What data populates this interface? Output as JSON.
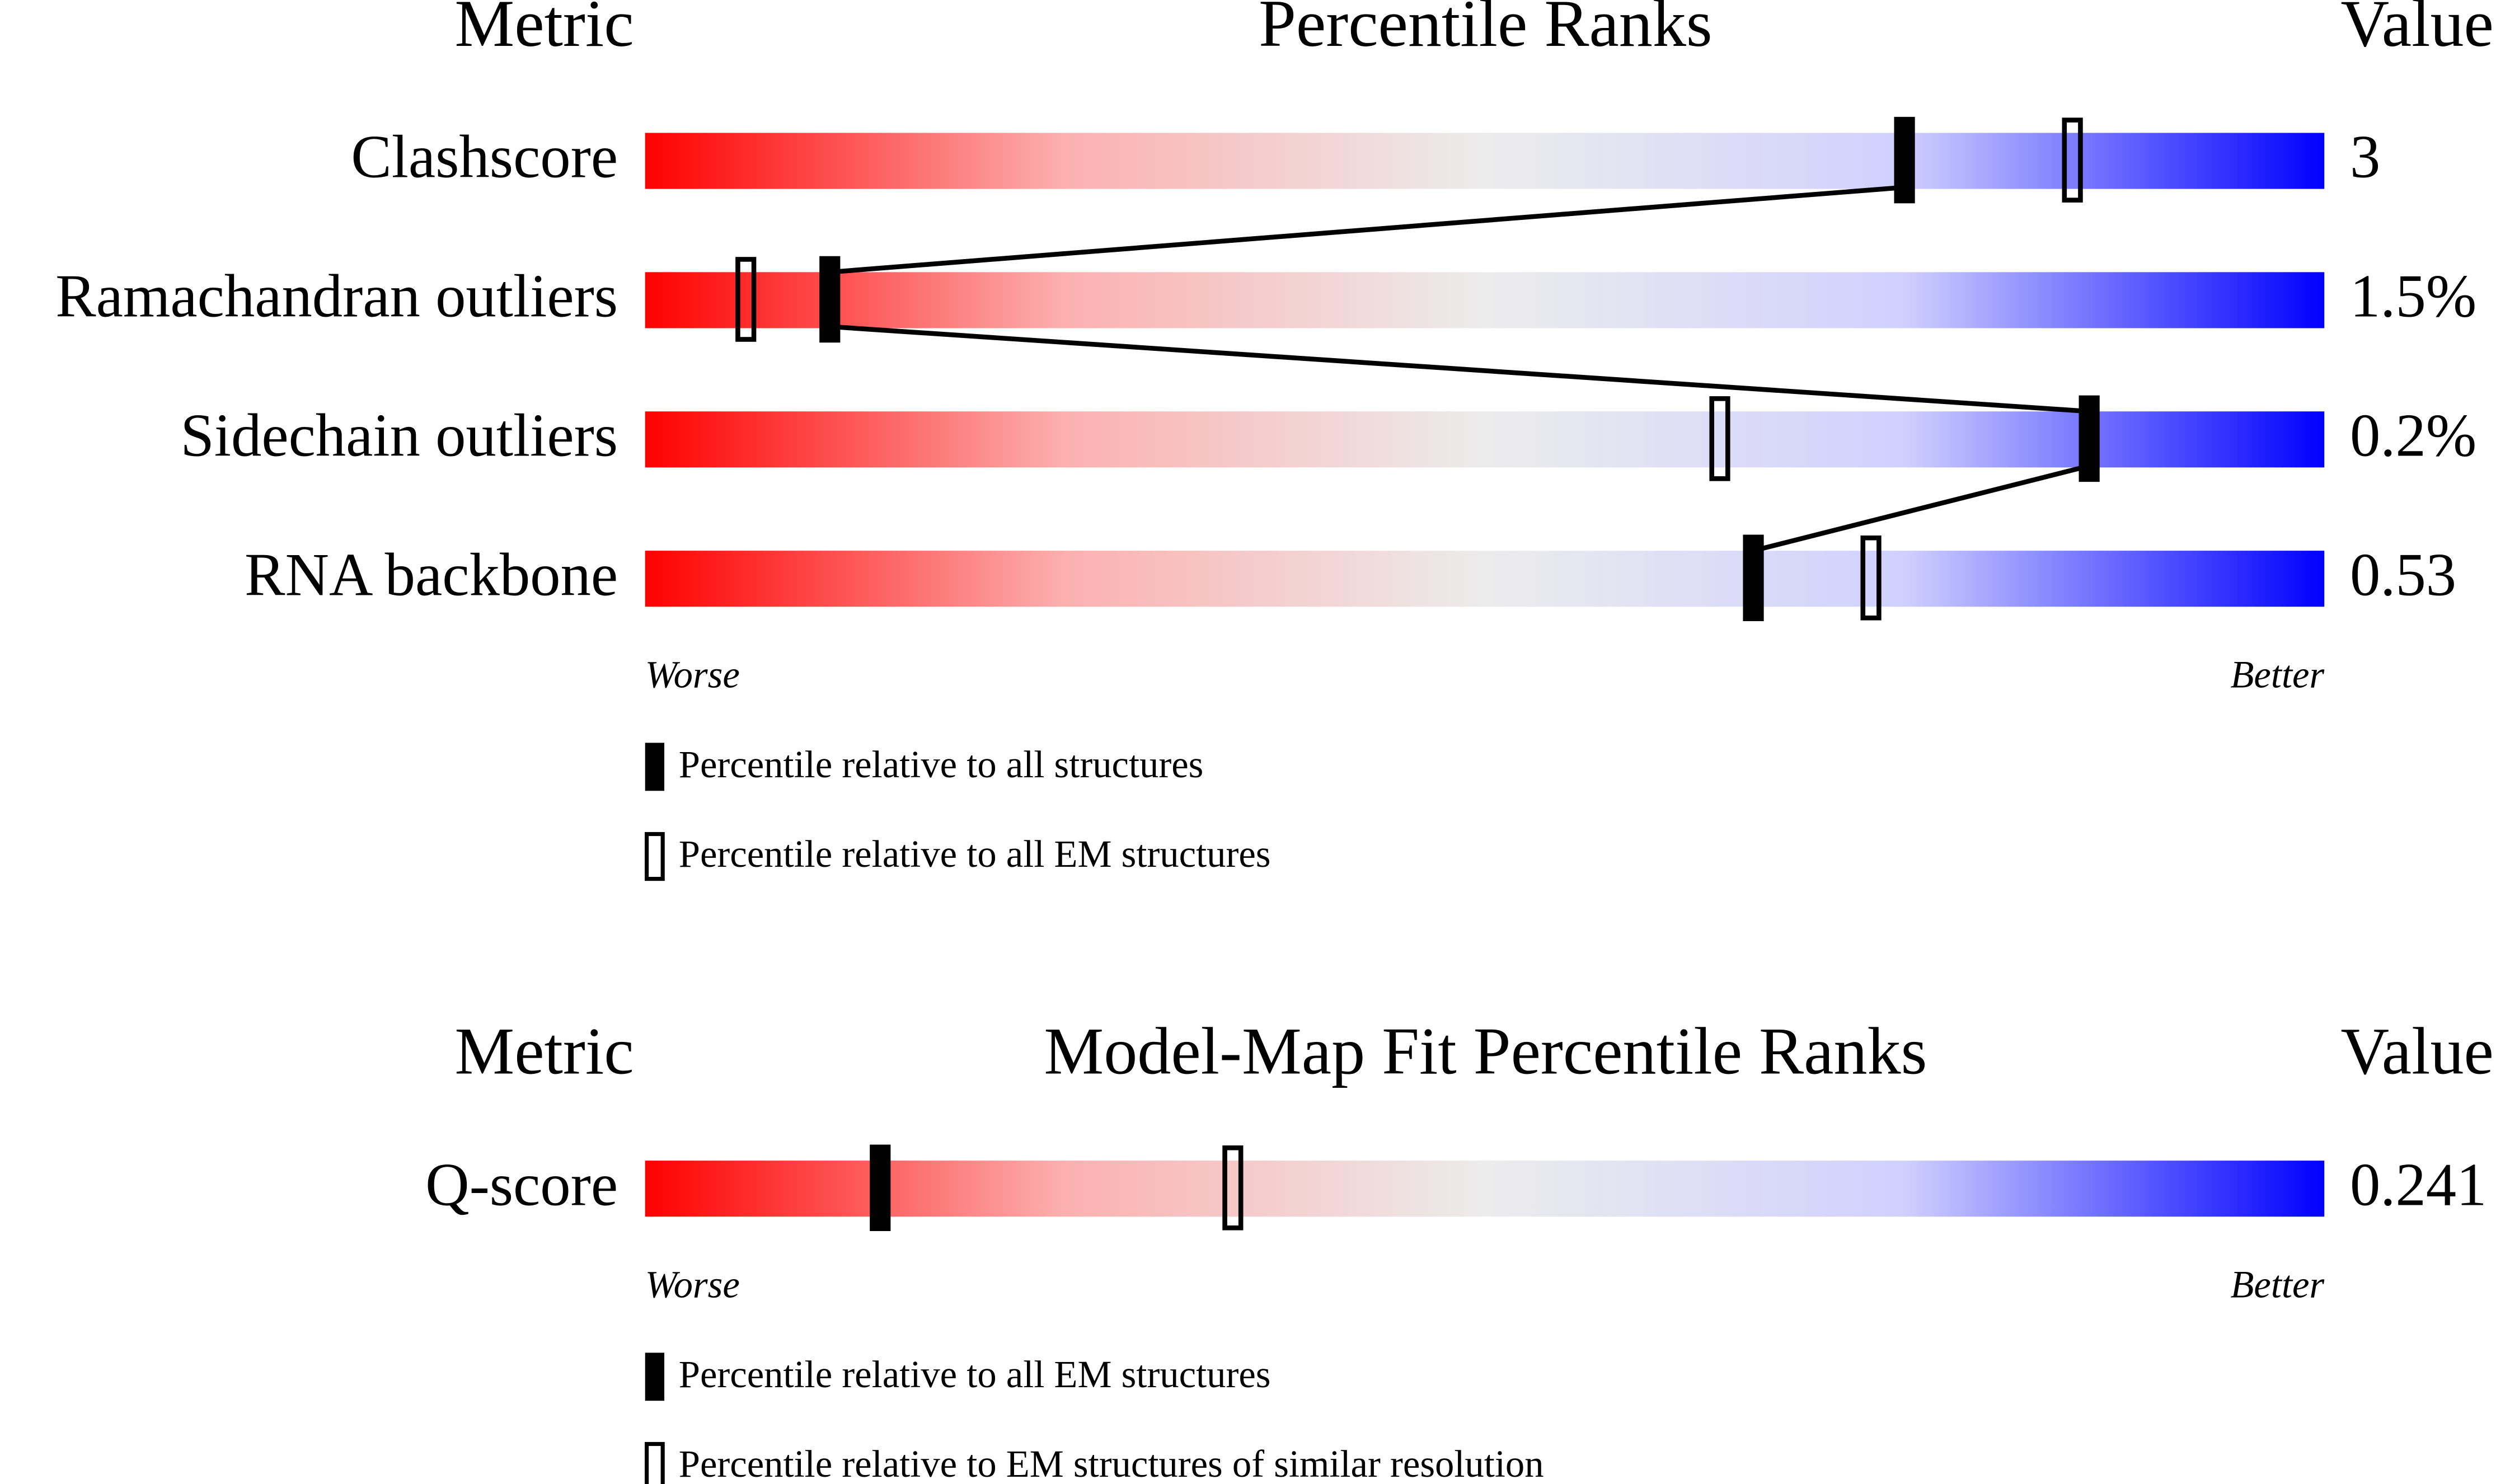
{
  "panels": [
    {
      "headers": {
        "metric": "Metric",
        "title": "Percentile Ranks",
        "value": "Value"
      },
      "xlim": [
        0,
        100
      ],
      "rows": [
        {
          "metric": "Clashscore",
          "percentile_filled": 75,
          "percentile_open": 85,
          "value": "3"
        },
        {
          "metric": "Ramachandran outliers",
          "percentile_filled": 11,
          "percentile_open": 6,
          "value": "1.5%"
        },
        {
          "metric": "Sidechain outliers",
          "percentile_filled": 86,
          "percentile_open": 64,
          "value": "0.2%"
        },
        {
          "metric": "RNA backbone",
          "percentile_filled": 66,
          "percentile_open": 73,
          "value": "0.53"
        }
      ],
      "connect_filled": true,
      "scale": {
        "worse": "Worse",
        "better": "Better"
      },
      "legend": {
        "filled": "Percentile relative to all structures",
        "open": "Percentile relative to all EM structures"
      }
    },
    {
      "headers": {
        "metric": "Metric",
        "title": "Model-Map Fit Percentile Ranks",
        "value": "Value"
      },
      "xlim": [
        0,
        100
      ],
      "rows": [
        {
          "metric": "Q-score",
          "percentile_filled": 14,
          "percentile_open": 35,
          "value": "0.241"
        }
      ],
      "connect_filled": false,
      "scale": {
        "worse": "Worse",
        "better": "Better"
      },
      "legend": {
        "filled": "Percentile relative to all EM structures",
        "open": "Percentile relative to EM structures of similar resolution"
      }
    }
  ]
}
